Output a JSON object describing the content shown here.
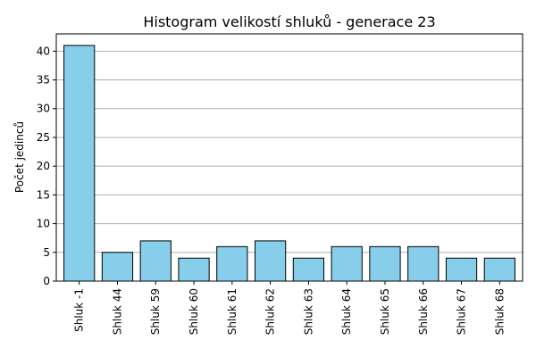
{
  "chart_data": {
    "type": "bar",
    "title": "Histogram velikostí shluků - generace 23",
    "xlabel": "",
    "ylabel": "Počet jedinců",
    "categories": [
      "Shluk -1",
      "Shluk 44",
      "Shluk 59",
      "Shluk 60",
      "Shluk 61",
      "Shluk 62",
      "Shluk 63",
      "Shluk 64",
      "Shluk 65",
      "Shluk 66",
      "Shluk 67",
      "Shluk 68"
    ],
    "values": [
      41,
      5,
      7,
      4,
      6,
      7,
      4,
      6,
      6,
      6,
      4,
      4
    ],
    "ylim": [
      0,
      43
    ],
    "yticks": [
      0,
      5,
      10,
      15,
      20,
      25,
      30,
      35,
      40
    ],
    "grid": "horizontal",
    "bar_color": "#87CEEB",
    "edge_color": "#000000",
    "grid_color": "#b0b0b0"
  }
}
